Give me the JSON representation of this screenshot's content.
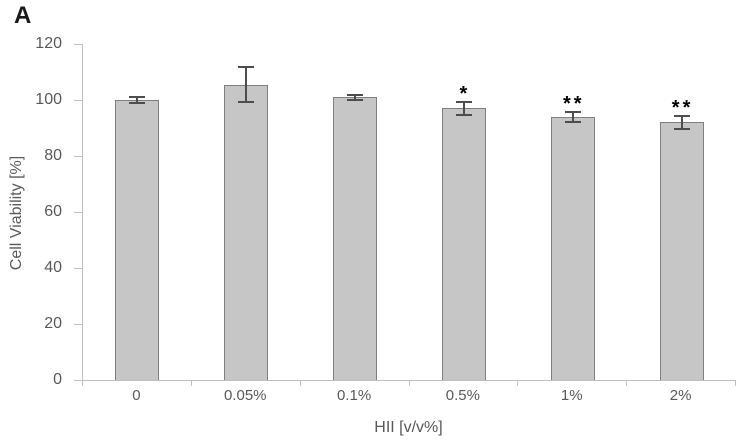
{
  "panel_label": "A",
  "chart_data": {
    "type": "bar",
    "title": "",
    "categories": [
      "0",
      "0.05%",
      "0.1%",
      "0.5%",
      "1%",
      "2%"
    ],
    "values": [
      100,
      105.5,
      101,
      97,
      94,
      92
    ],
    "errors": [
      1.2,
      6.3,
      0.9,
      2.4,
      1.8,
      2.4
    ],
    "significance": [
      "",
      "",
      "",
      "*",
      "**",
      "**"
    ],
    "xlabel": "HII [v/v%]",
    "ylabel": "Cell Viability [%]",
    "ylim": [
      0,
      120
    ],
    "yticks": [
      0,
      20,
      40,
      60,
      80,
      100,
      120
    ],
    "legend": "none",
    "grid": false,
    "colors": {
      "bar_fill": "#c6c6c6",
      "bar_border": "#7f7f7f",
      "error_bar": "#4d4d4d",
      "axis": "#bfbfbf",
      "tick_text": "#595959",
      "significance_text": "#000000",
      "panel_label_text": "#1a1a1a"
    }
  }
}
